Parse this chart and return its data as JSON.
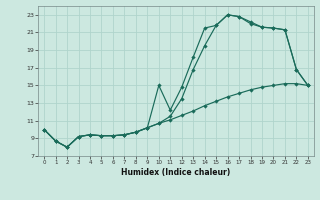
{
  "xlabel": "Humidex (Indice chaleur)",
  "background_color": "#cce8e0",
  "grid_color": "#b0d4cc",
  "line_color": "#1a6b5a",
  "xlim": [
    -0.5,
    23.5
  ],
  "ylim": [
    7,
    24
  ],
  "xticks": [
    0,
    1,
    2,
    3,
    4,
    5,
    6,
    7,
    8,
    9,
    10,
    11,
    12,
    13,
    14,
    15,
    16,
    17,
    18,
    19,
    20,
    21,
    22,
    23
  ],
  "yticks": [
    7,
    9,
    11,
    13,
    15,
    17,
    19,
    21,
    23
  ],
  "line1_x": [
    0,
    1,
    2,
    3,
    4,
    5,
    6,
    7,
    8,
    9,
    10,
    11,
    12,
    13,
    14,
    15,
    16,
    17,
    18,
    19,
    20,
    21,
    22,
    23
  ],
  "line1_y": [
    10.0,
    8.7,
    8.0,
    9.2,
    9.4,
    9.3,
    9.3,
    9.4,
    9.7,
    10.2,
    15.0,
    12.2,
    14.8,
    18.2,
    21.5,
    21.8,
    23.0,
    22.8,
    22.0,
    21.6,
    21.5,
    21.3,
    16.8,
    15.0
  ],
  "line2_x": [
    0,
    1,
    2,
    3,
    4,
    5,
    6,
    7,
    8,
    9,
    10,
    11,
    12,
    13,
    14,
    15,
    16,
    17,
    18,
    19,
    20,
    21,
    22,
    23
  ],
  "line2_y": [
    10.0,
    8.7,
    8.0,
    9.2,
    9.4,
    9.3,
    9.3,
    9.4,
    9.7,
    10.2,
    10.7,
    11.5,
    13.5,
    16.8,
    19.5,
    21.8,
    23.0,
    22.8,
    22.2,
    21.6,
    21.5,
    21.3,
    16.8,
    15.0
  ],
  "line3_x": [
    0,
    1,
    2,
    3,
    4,
    5,
    6,
    7,
    8,
    9,
    10,
    11,
    12,
    13,
    14,
    15,
    16,
    17,
    18,
    19,
    20,
    21,
    22,
    23
  ],
  "line3_y": [
    10.0,
    8.7,
    8.0,
    9.2,
    9.4,
    9.3,
    9.3,
    9.4,
    9.7,
    10.2,
    10.7,
    11.1,
    11.6,
    12.1,
    12.7,
    13.2,
    13.7,
    14.1,
    14.5,
    14.8,
    15.0,
    15.2,
    15.2,
    15.0
  ]
}
